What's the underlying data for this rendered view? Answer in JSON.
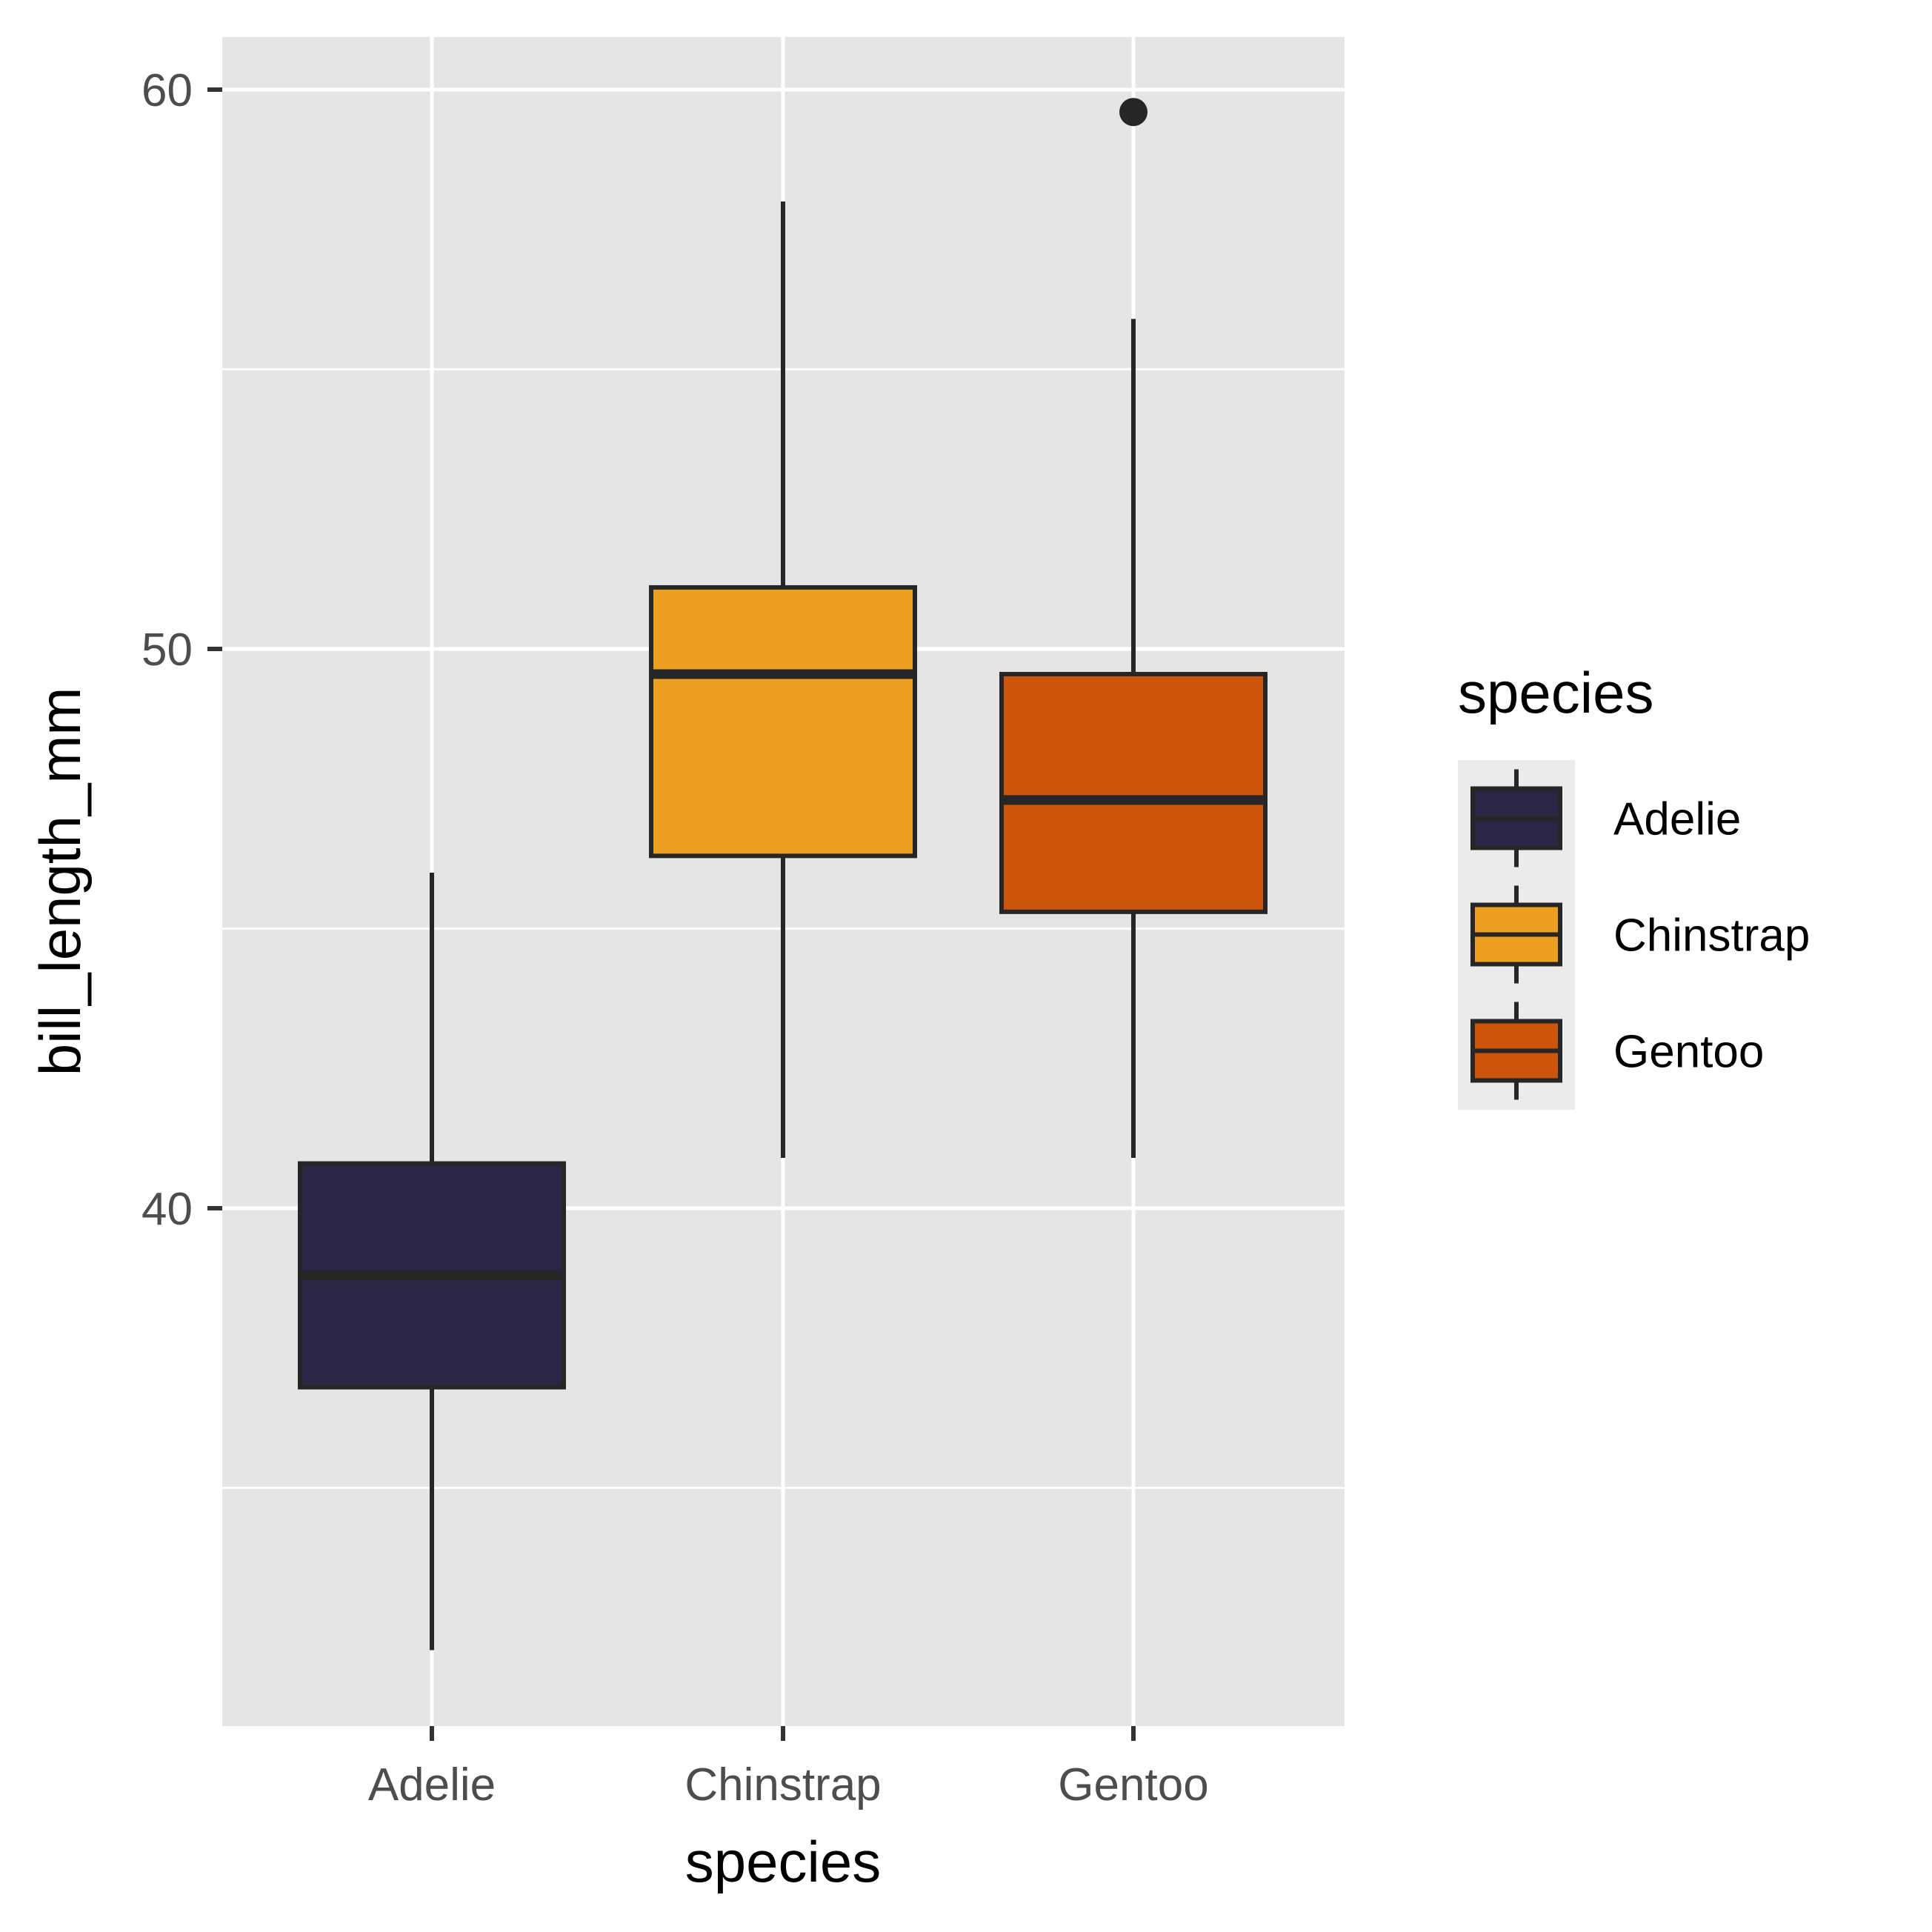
{
  "chart_data": {
    "type": "box",
    "xlabel": "species",
    "ylabel": "bill_length_mm",
    "ylim": [
      31.0,
      61.0
    ],
    "y_ticks": [
      40,
      50,
      60
    ],
    "y_minor": [
      35,
      45,
      55
    ],
    "grid": true,
    "panel_background": "#e5e5e5",
    "legend": {
      "title": "species",
      "placement": "right"
    },
    "categories": [
      "Adelie",
      "Chinstrap",
      "Gentoo"
    ],
    "boxes": [
      {
        "category": "Adelie",
        "color": "#2b2645",
        "whisker_low": 32.1,
        "q1": 36.8,
        "median": 38.8,
        "q3": 40.8,
        "whisker_high": 46.0,
        "outliers": []
      },
      {
        "category": "Chinstrap",
        "color": "#ed9f22",
        "whisker_low": 40.9,
        "q1": 46.3,
        "median": 49.55,
        "q3": 51.1,
        "whisker_high": 58.0,
        "outliers": []
      },
      {
        "category": "Gentoo",
        "color": "#cc540b",
        "whisker_low": 40.9,
        "q1": 45.3,
        "median": 47.3,
        "q3": 49.55,
        "whisker_high": 55.9,
        "outliers": [
          59.6
        ]
      }
    ]
  }
}
